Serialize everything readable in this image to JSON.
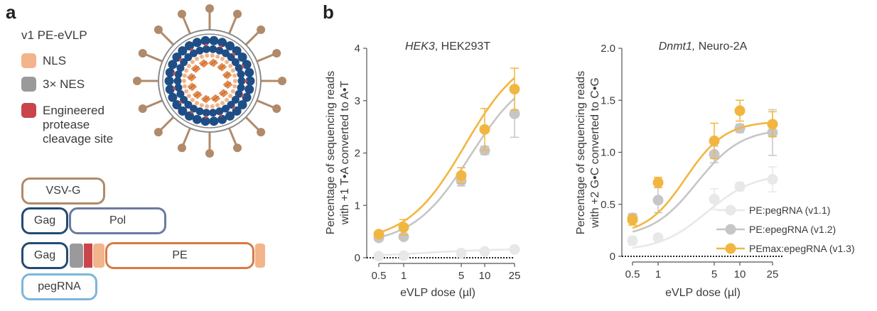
{
  "panel_a": {
    "letter": "a",
    "title": "v1 PE-eVLP",
    "legend": [
      {
        "label": "NLS",
        "color": "#f2b48a"
      },
      {
        "label": "3× NES",
        "color": "#9a9a9c"
      },
      {
        "label": "Engineered",
        "label2": "protease",
        "label3": "cleavage site",
        "color": "#c8454b"
      }
    ],
    "constructs": {
      "vsvg": "VSV-G",
      "gag": "Gag",
      "pol": "Pol",
      "pe": "PE",
      "pegrna": "pegRNA"
    },
    "colors": {
      "vsvg": "#b08a6a",
      "gag": "#244a72",
      "pol": "#6a7aa0",
      "pe": "#d87a44",
      "pegrna": "#7cb6de",
      "nls": "#f2b48a",
      "nes": "#9a9a9c",
      "cleavage": "#c8454b",
      "particle_blue": "#1f4e86",
      "particle_orange": "#e8894a",
      "spike": "#b08a6a"
    }
  },
  "panel_b": {
    "letter": "b",
    "series_styles": [
      {
        "name": "PE:pegRNA (v1.1)",
        "color": "#e8e8e8"
      },
      {
        "name": "PE:epegRNA (v1.2)",
        "color": "#c6c6c6"
      },
      {
        "name": "PEmax:epegRNA (v1.3)",
        "color": "#f2b640"
      }
    ]
  },
  "chart_data": [
    {
      "type": "scatter",
      "title_italic": "HEK3",
      "title_rest": ", HEK293T",
      "xlabel": "eVLP dose (µl)",
      "ylabel_line1": "Percentage of sequencing reads",
      "ylabel_line2": "with +1 T•A converted to A•T",
      "x_scale": "log",
      "x_ticks": [
        "0.5",
        "1",
        "5",
        "10",
        "25"
      ],
      "x_tick_values": [
        0.5,
        1,
        5,
        10,
        25
      ],
      "y_ticks": [
        "0",
        "1",
        "2",
        "3",
        "4"
      ],
      "ylim": [
        0,
        4
      ],
      "x": [
        0.5,
        1,
        5,
        10,
        25
      ],
      "series": [
        {
          "name": "PE:pegRNA (v1.1)",
          "values": [
            0.03,
            0.04,
            0.09,
            0.12,
            0.16
          ],
          "err": [
            0.02,
            0.02,
            0.02,
            0.02,
            0.02
          ]
        },
        {
          "name": "PE:epegRNA (v1.2)",
          "values": [
            0.38,
            0.4,
            1.47,
            2.05,
            2.75
          ],
          "err": [
            0.05,
            0.05,
            0.1,
            0.08,
            0.45
          ]
        },
        {
          "name": "PEmax:epegRNA (v1.3)",
          "values": [
            0.45,
            0.58,
            1.57,
            2.45,
            3.22
          ],
          "err": [
            0.05,
            0.15,
            0.15,
            0.4,
            0.4
          ]
        }
      ]
    },
    {
      "type": "scatter",
      "title_italic": "Dnmt1,",
      "title_rest": " Neuro-2A",
      "xlabel": "eVLP dose (µl)",
      "ylabel_line1": "Percentage of sequencing reads",
      "ylabel_line2": "with +2 G•C converted to C•G",
      "x_scale": "log",
      "x_ticks": [
        "0.5",
        "1",
        "5",
        "10",
        "25"
      ],
      "x_tick_values": [
        0.5,
        1,
        5,
        10,
        25
      ],
      "y_ticks": [
        "0",
        "0.5",
        "1.0",
        "1.5",
        "2.0"
      ],
      "ylim": [
        0,
        2
      ],
      "x": [
        0.5,
        1,
        5,
        10,
        25
      ],
      "series": [
        {
          "name": "PE:pegRNA (v1.1)",
          "values": [
            0.15,
            0.18,
            0.55,
            0.67,
            0.74
          ],
          "err": [
            0.04,
            0.03,
            0.1,
            0.04,
            0.12
          ]
        },
        {
          "name": "PE:epegRNA (v1.2)",
          "values": [
            0.37,
            0.54,
            0.98,
            1.23,
            1.19
          ],
          "err": [
            0.04,
            0.12,
            0.08,
            0.04,
            0.22
          ]
        },
        {
          "name": "PEmax:epegRNA (v1.3)",
          "values": [
            0.35,
            0.71,
            1.11,
            1.4,
            1.27
          ],
          "err": [
            0.05,
            0.05,
            0.17,
            0.1,
            0.12
          ]
        }
      ]
    }
  ]
}
